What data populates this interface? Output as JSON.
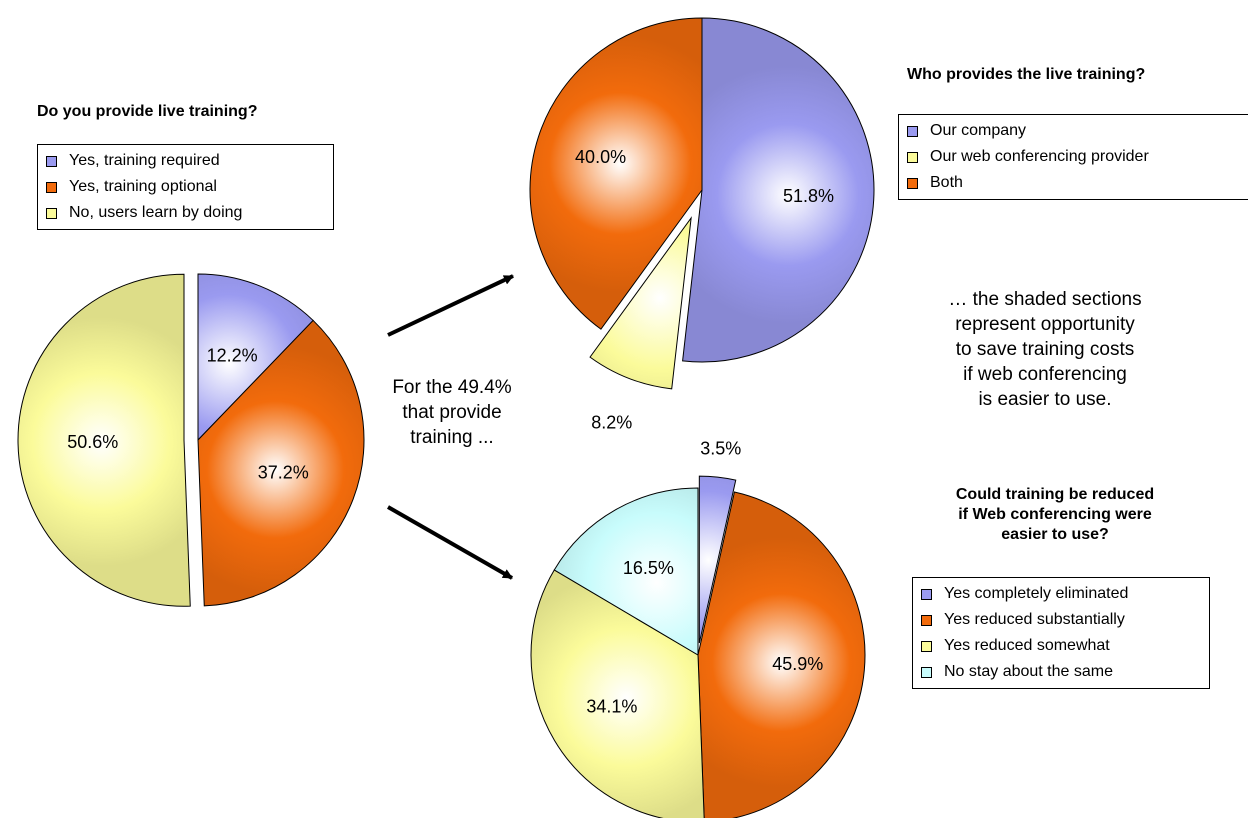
{
  "chart_data": [
    {
      "type": "pie",
      "title": "Do you provide live training?",
      "labels": [
        "Yes, training required",
        "Yes, training optional",
        "No, users learn by doing"
      ],
      "values": [
        12.2,
        37.2,
        50.6
      ],
      "value_labels": [
        "12.2%",
        "37.2%",
        "50.6%"
      ],
      "colors": [
        "#9a9af0",
        "#f26b0c",
        "#fbfb9a"
      ],
      "exploded": [
        false,
        false,
        true
      ],
      "legend": "top"
    },
    {
      "type": "pie",
      "title": "Who provides the live training?",
      "labels": [
        "Our company",
        "Our web conferencing provider",
        "Both"
      ],
      "values": [
        51.8,
        8.2,
        40.0
      ],
      "value_labels": [
        "51.8%",
        "8.2%",
        "40.0%"
      ],
      "colors": [
        "#9a9af0",
        "#fbfb9a",
        "#f26b0c"
      ],
      "exploded": [
        false,
        true,
        false
      ],
      "legend": "right"
    },
    {
      "type": "pie",
      "title": "Could training be reduced if Web conferencing were easier to use?",
      "labels": [
        "Yes completely eliminated",
        "Yes reduced substantially",
        "Yes reduced somewhat",
        "No stay about the same"
      ],
      "values": [
        3.5,
        45.9,
        34.1,
        16.5
      ],
      "value_labels": [
        "3.5%",
        "45.9%",
        "34.1%",
        "16.5%"
      ],
      "colors": [
        "#9a9af0",
        "#f26b0c",
        "#fbfb9a",
        "#c8fcfc"
      ],
      "exploded": [
        true,
        false,
        false,
        false
      ],
      "legend": "right"
    }
  ],
  "page": {
    "title1": "Do you provide live training?",
    "title2": "Who provides the live training?",
    "title3_lines": [
      "Could training be reduced",
      "if Web conferencing were",
      "easier to use?"
    ],
    "middle_lines": [
      "For the 49.4%",
      "that provide",
      "training ..."
    ],
    "note_lines": [
      "… the shaded sections",
      "represent opportunity",
      "to save training costs",
      "if web conferencing",
      "is easier to use."
    ]
  }
}
